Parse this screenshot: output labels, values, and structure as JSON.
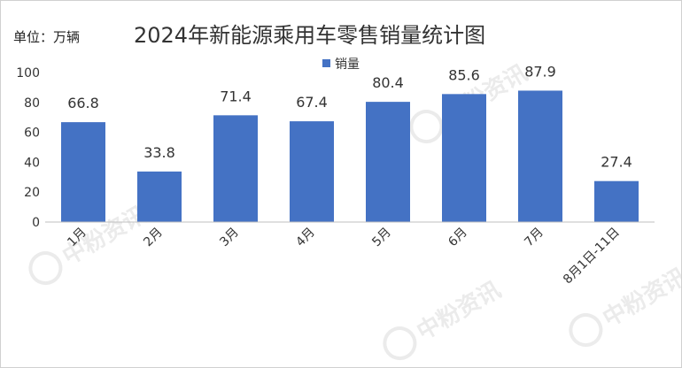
{
  "unit_label": "单位：万辆",
  "watermark": {
    "text": "中粉资讯",
    "icon": "p-logo-icon",
    "color": "#c8c8c8"
  },
  "chart_data": {
    "type": "bar",
    "title": "2024年新能源乘用车零售销量统计图",
    "xlabel": "",
    "ylabel": "",
    "categories": [
      "1月",
      "2月",
      "3月",
      "4月",
      "5月",
      "6月",
      "7月",
      "8月1日-11日"
    ],
    "series": [
      {
        "name": "销量",
        "values": [
          66.8,
          33.8,
          71.4,
          67.4,
          80.4,
          85.6,
          87.9,
          27.4
        ],
        "color": "#4472c4"
      }
    ],
    "ylim": [
      0,
      100
    ],
    "yticks": [
      0,
      20,
      40,
      60,
      80,
      100
    ],
    "grid": false,
    "legend": "top"
  }
}
